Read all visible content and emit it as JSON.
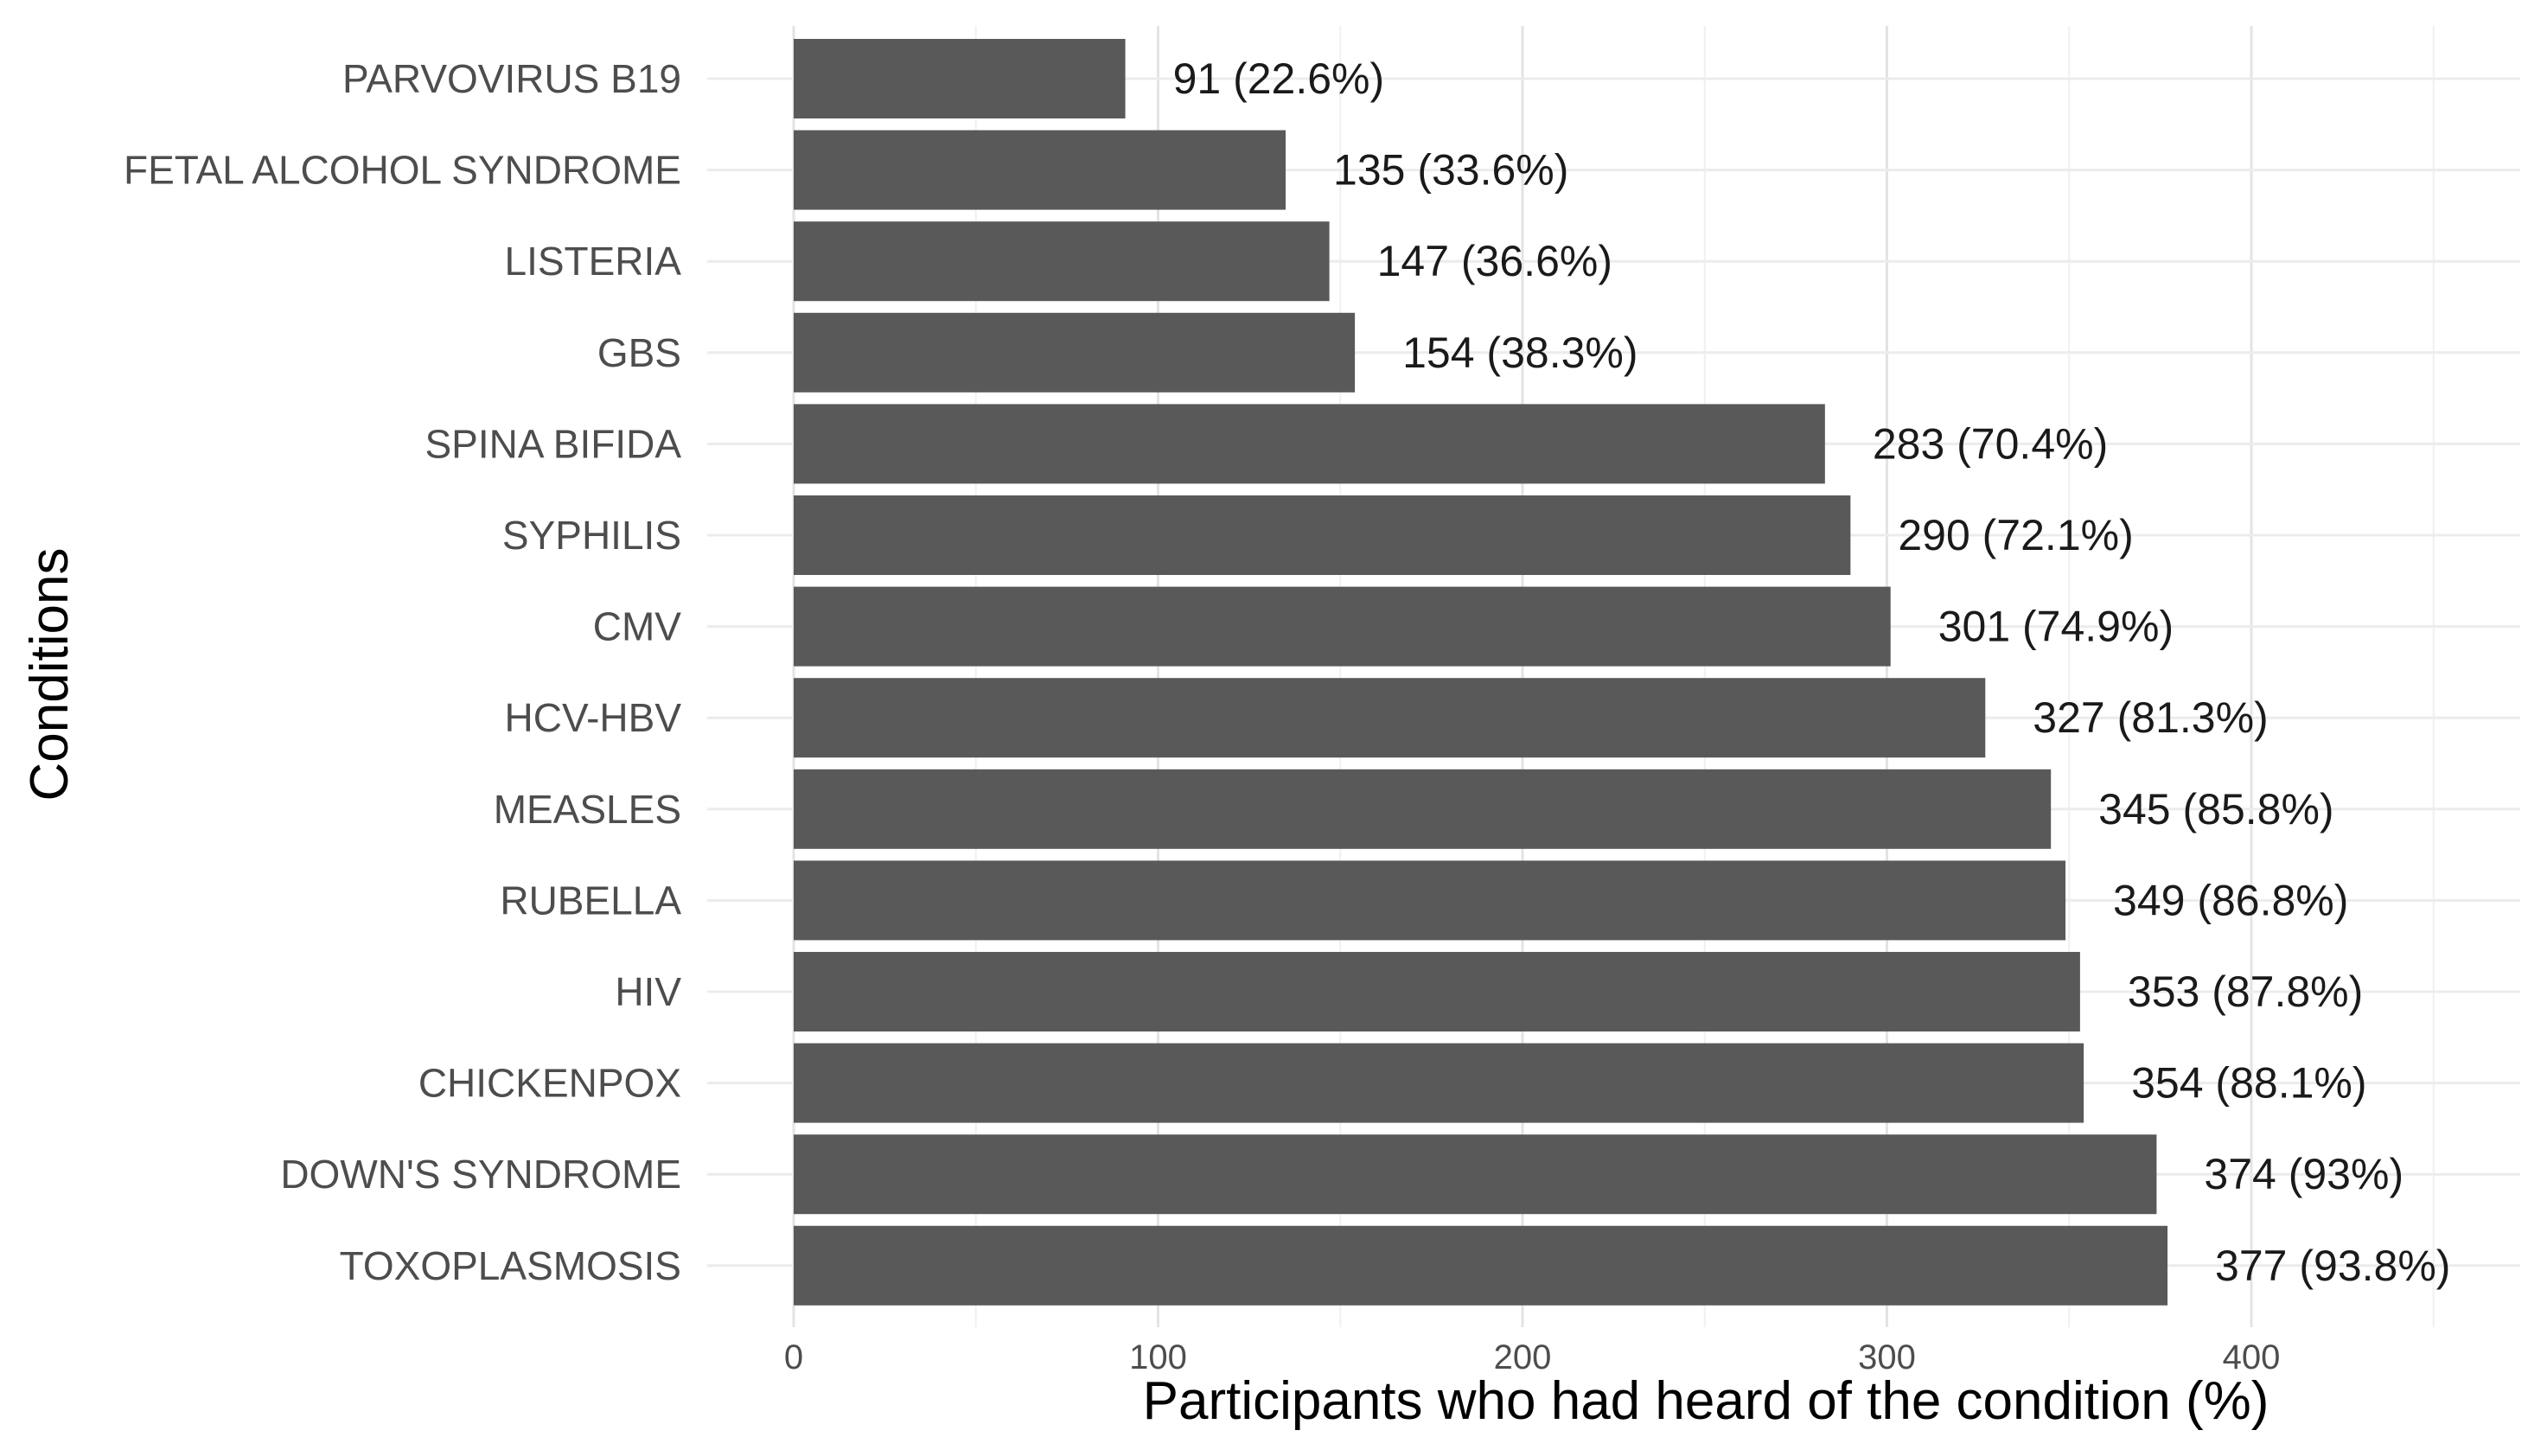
{
  "chart_data": {
    "type": "bar",
    "orientation": "horizontal",
    "title": "",
    "xlabel": "Participants who had heard of the condition (%)",
    "ylabel": "Conditions",
    "xlim": [
      0,
      460
    ],
    "xticks": [
      0,
      100,
      200,
      300,
      400
    ],
    "xtick_labels": [
      "0",
      "100",
      "200",
      "300",
      "400"
    ],
    "grid": true,
    "bar_color": "#595959",
    "categories": [
      "PARVOVIRUS B19",
      "FETAL ALCOHOL SYNDROME",
      "LISTERIA",
      "GBS",
      "SPINA BIFIDA",
      "SYPHILIS",
      "CMV",
      "HCV-HBV",
      "MEASLES",
      "RUBELLA",
      "HIV",
      "CHICKENPOX",
      "DOWN'S SYNDROME",
      "TOXOPLASMOSIS"
    ],
    "values": [
      91,
      135,
      147,
      154,
      283,
      290,
      301,
      327,
      345,
      349,
      353,
      354,
      374,
      377
    ],
    "data_labels": [
      "91 (22.6%)",
      "135 (33.6%)",
      "147 (36.6%)",
      "154 (38.3%)",
      "283 (70.4%)",
      "290 (72.1%)",
      "301 (74.9%)",
      "327 (81.3%)",
      "345 (85.8%)",
      "349 (86.8%)",
      "353 (87.8%)",
      "354 (88.1%)",
      "374 (93%)",
      "377 (93.8%)"
    ]
  }
}
